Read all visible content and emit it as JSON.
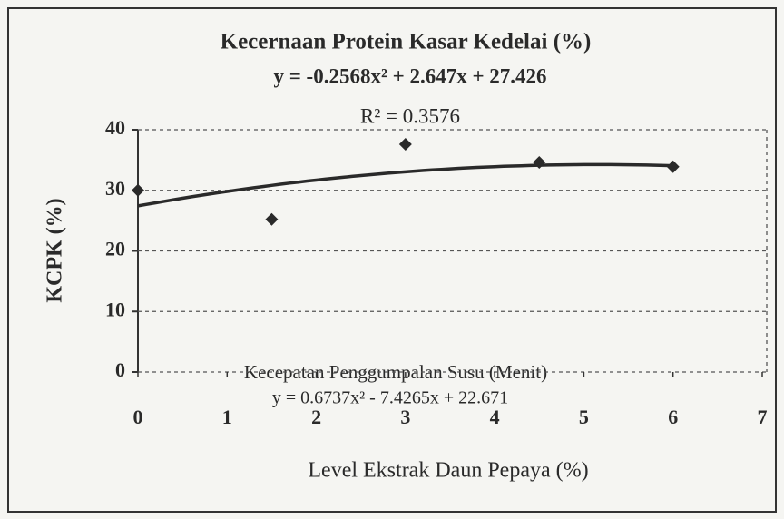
{
  "chart_data": {
    "type": "scatter",
    "title": "Kecernaan Protein Kasar Kedelai (%)",
    "subtitle": "y = -0.2568x² + 2.647x + 27.426",
    "r_squared": "R² = 0.3576",
    "x_label": "Level Ekstrak Daun Pepaya (%)",
    "y_label": "KCPK (%)",
    "annotations": [
      "Kecepatan Penggumpalan Susu (Menit)",
      "y = 0.6737x² - 7.4265x + 22.671"
    ],
    "x": [
      0,
      1.5,
      3,
      4.5,
      6
    ],
    "values": [
      30,
      25.2,
      37.6,
      34.6,
      33.9
    ],
    "color": "#2a2a2a",
    "trendline": {
      "coefficients": [
        -0.2568,
        2.647,
        27.426
      ]
    },
    "xlim": [
      0,
      7
    ],
    "xticks": [
      0,
      1,
      2,
      3,
      4,
      5,
      6,
      7
    ],
    "ylim": [
      0,
      40
    ],
    "yticks": [
      0,
      10,
      20,
      30,
      40
    ],
    "grid": true
  }
}
